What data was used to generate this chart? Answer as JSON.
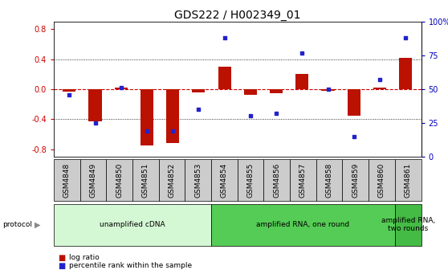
{
  "title": "GDS222 / H002349_01",
  "samples": [
    "GSM4848",
    "GSM4849",
    "GSM4850",
    "GSM4851",
    "GSM4852",
    "GSM4853",
    "GSM4854",
    "GSM4855",
    "GSM4856",
    "GSM4857",
    "GSM4858",
    "GSM4859",
    "GSM4860",
    "GSM4861"
  ],
  "log_ratio": [
    -0.03,
    -0.43,
    0.02,
    -0.75,
    -0.72,
    -0.04,
    0.3,
    -0.08,
    -0.05,
    0.2,
    -0.02,
    -0.35,
    0.02,
    0.42
  ],
  "percentile": [
    46,
    25,
    51,
    19,
    19,
    35,
    88,
    30,
    32,
    77,
    50,
    15,
    57,
    88
  ],
  "protocols": [
    {
      "label": "unamplified cDNA",
      "start": 0,
      "end": 5,
      "color": "#d4f7d4"
    },
    {
      "label": "amplified RNA, one round",
      "start": 6,
      "end": 12,
      "color": "#55cc55"
    },
    {
      "label": "amplified RNA,\ntwo rounds",
      "start": 13,
      "end": 13,
      "color": "#44bb44"
    }
  ],
  "ylim_left": [
    -0.9,
    0.9
  ],
  "ylim_right": [
    0,
    100
  ],
  "bar_color": "#bb1100",
  "dot_color": "#2222cc",
  "ref_line_color": "#cc0000",
  "grid_color": "#000000",
  "bg_color": "#ffffff",
  "title_fontsize": 10,
  "tick_fontsize": 7,
  "label_fontsize": 7,
  "ylabel_left_color": "#cc0000",
  "ylabel_right_color": "#0000bb",
  "yticks_left": [
    -0.8,
    -0.4,
    0.0,
    0.4,
    0.8
  ],
  "yticks_right": [
    0,
    25,
    50,
    75,
    100
  ],
  "bar_width": 0.5
}
